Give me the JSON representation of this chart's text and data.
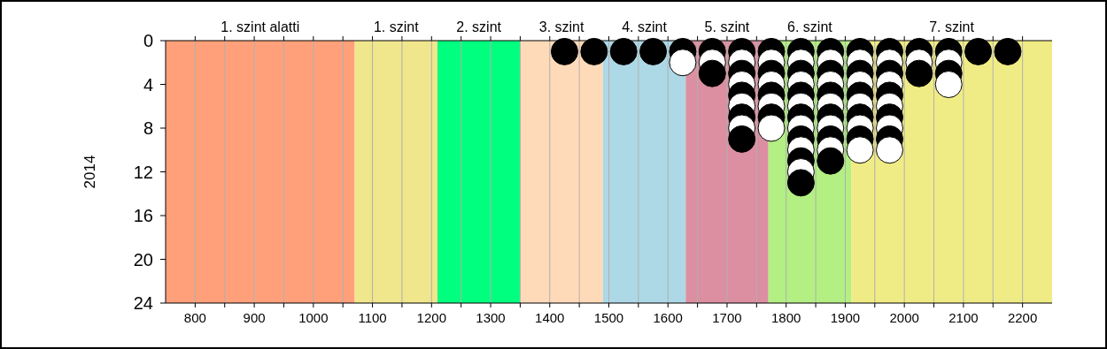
{
  "chart_data": {
    "type": "scatter",
    "ylabel": "2014",
    "marker": "circle",
    "grid": "x",
    "xlim": [
      750,
      2250
    ],
    "xticks": [
      800,
      {
        "value": 850,
        "label": null
      },
      900,
      {
        "value": 950,
        "label": null
      },
      1000,
      {
        "value": 1050,
        "label": null
      },
      1100,
      {
        "value": 1150,
        "label": null
      },
      1200,
      {
        "value": 1250,
        "label": null
      },
      1300,
      {
        "value": 1350,
        "label": null
      },
      1400,
      {
        "value": 1450,
        "label": null
      },
      1500,
      {
        "value": 1550,
        "label": null
      },
      1600,
      {
        "value": 1650,
        "label": null
      },
      1700,
      {
        "value": 1750,
        "label": null
      },
      1800,
      {
        "value": 1850,
        "label": null
      },
      1900,
      {
        "value": 1950,
        "label": null
      },
      2000,
      {
        "value": 2050,
        "label": null
      },
      2100,
      {
        "value": 2150,
        "label": null
      },
      2200
    ],
    "ylim": [
      24,
      0
    ],
    "yticks": [
      0,
      4,
      8,
      12,
      16,
      20,
      24
    ],
    "bands": [
      {
        "axis": "x",
        "from": 750,
        "to": 1070,
        "label": "1. szint alatti",
        "color": "#ffa07a"
      },
      {
        "axis": "x",
        "from": 1070,
        "to": 1210,
        "label": "1. szint",
        "color": "#f0e68c"
      },
      {
        "axis": "x",
        "from": 1210,
        "to": 1350,
        "label": "2. szint",
        "color": "#00ff7f"
      },
      {
        "axis": "x",
        "from": 1350,
        "to": 1490,
        "label": "3. szint",
        "color": "#ffdab9"
      },
      {
        "axis": "x",
        "from": 1490,
        "to": 1630,
        "label": "4. szint",
        "color": "#add8e6"
      },
      {
        "axis": "x",
        "from": 1630,
        "to": 1770,
        "label": "5. szint",
        "color": "#db8fa1"
      },
      {
        "axis": "x",
        "from": 1770,
        "to": 1910,
        "label": "6. szint",
        "color": "#b3ef82"
      },
      {
        "axis": "x",
        "from": 1910,
        "to": 2250,
        "label": "7. szint",
        "color": "#f0ec85"
      }
    ],
    "series": [
      {
        "x": [
          1425,
          1475,
          1525,
          1575,
          1625,
          1625,
          1675,
          1675,
          1675,
          1725,
          1725,
          1725,
          1725,
          1725,
          1725,
          1725,
          1725,
          1725,
          1775,
          1775,
          1775,
          1775,
          1775,
          1775,
          1775,
          1775,
          1825,
          1825,
          1825,
          1825,
          1825,
          1825,
          1825,
          1825,
          1825,
          1825,
          1825,
          1825,
          1825,
          1875,
          1875,
          1875,
          1875,
          1875,
          1875,
          1875,
          1875,
          1875,
          1875,
          1875,
          1925,
          1925,
          1925,
          1925,
          1925,
          1925,
          1925,
          1925,
          1925,
          1925,
          1975,
          1975,
          1975,
          1975,
          1975,
          1975,
          1975,
          1975,
          1975,
          1975,
          2025,
          2025,
          2025,
          2075,
          2075,
          2075,
          2075,
          2125,
          2175
        ],
        "values": [
          1,
          1,
          1,
          1,
          1,
          2,
          1,
          2,
          3,
          1,
          2,
          3,
          4,
          5,
          6,
          7,
          8,
          9,
          1,
          2,
          3,
          4,
          5,
          6,
          7,
          8,
          1,
          2,
          3,
          4,
          5,
          6,
          7,
          8,
          9,
          10,
          11,
          12,
          13,
          1,
          2,
          3,
          4,
          5,
          6,
          7,
          8,
          9,
          10,
          11,
          1,
          2,
          3,
          4,
          5,
          6,
          7,
          8,
          9,
          10,
          1,
          2,
          3,
          4,
          5,
          6,
          7,
          8,
          9,
          10,
          1,
          2,
          3,
          1,
          2,
          3,
          4,
          1,
          1
        ],
        "colors": [
          "#000000",
          "#000000",
          "#000000",
          "#000000",
          "#000000",
          "#ffffff",
          "#000000",
          "#ffffff",
          "#000000",
          "#000000",
          "#ffffff",
          "#000000",
          "#ffffff",
          "#000000",
          "#ffffff",
          "#000000",
          "#ffffff",
          "#000000",
          "#000000",
          "#ffffff",
          "#000000",
          "#ffffff",
          "#000000",
          "#ffffff",
          "#000000",
          "#ffffff",
          "#000000",
          "#ffffff",
          "#000000",
          "#ffffff",
          "#000000",
          "#ffffff",
          "#000000",
          "#ffffff",
          "#000000",
          "#ffffff",
          "#000000",
          "#ffffff",
          "#000000",
          "#000000",
          "#ffffff",
          "#000000",
          "#ffffff",
          "#000000",
          "#ffffff",
          "#000000",
          "#ffffff",
          "#000000",
          "#ffffff",
          "#000000",
          "#000000",
          "#ffffff",
          "#000000",
          "#ffffff",
          "#000000",
          "#ffffff",
          "#000000",
          "#ffffff",
          "#000000",
          "#ffffff",
          "#000000",
          "#ffffff",
          "#000000",
          "#ffffff",
          "#000000",
          "#ffffff",
          "#000000",
          "#ffffff",
          "#000000",
          "#ffffff",
          "#000000",
          "#ffffff",
          "#000000",
          "#000000",
          "#ffffff",
          "#000000",
          "#ffffff",
          "#000000",
          "#000000"
        ]
      }
    ]
  }
}
